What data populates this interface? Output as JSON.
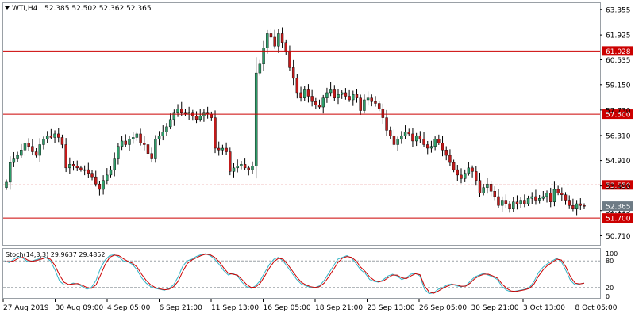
{
  "header": {
    "symbol_label": "WTI,H4",
    "ohlc": "52.385 52.502 52.362 52.365"
  },
  "colors": {
    "bull": "#2e9e6a",
    "bear": "#c21a1a",
    "level_line": "#cc0000",
    "stoch_main": "#35b5c7",
    "stoch_signal": "#cc0000",
    "price_badge": "#6e7b85",
    "grid": "#9aa0a6"
  },
  "chart_data": [
    {
      "type": "candlestick",
      "title": "WTI,H4",
      "y_ticks": [
        "63.355",
        "61.925",
        "60.535",
        "59.150",
        "57.730",
        "56.310",
        "54.910",
        "53.490",
        "52.115",
        "50.710"
      ],
      "ylim": [
        50.2,
        63.7
      ],
      "x_ticks": [
        "27 Aug 2019",
        "30 Aug 09:00",
        "4 Sep 05:00",
        "6 Sep 21:00",
        "11 Sep 13:00",
        "16 Sep 05:00",
        "18 Sep 21:00",
        "23 Sep 13:00",
        "26 Sep 05:00",
        "30 Sep 21:00",
        "3 Oct 13:00",
        "8 Oct 05:00"
      ],
      "horizontal_levels": [
        {
          "label": "61.028",
          "value": 61.028,
          "style": "solid"
        },
        {
          "label": "57.500",
          "value": 57.5,
          "style": "solid"
        },
        {
          "label": "53.550",
          "value": 53.55,
          "style": "dashed"
        },
        {
          "label": "51.700",
          "value": 51.7,
          "style": "solid"
        }
      ],
      "current_price": {
        "label": "52.365",
        "value": 52.365
      },
      "closes": [
        53.7,
        54.8,
        55.0,
        55.2,
        55.5,
        55.9,
        55.7,
        55.4,
        55.2,
        55.8,
        56.1,
        56.3,
        56.2,
        56.4,
        56.2,
        55.8,
        54.5,
        54.7,
        54.6,
        54.5,
        54.4,
        54.4,
        54.2,
        54.0,
        53.6,
        53.3,
        53.8,
        54.1,
        54.4,
        55.0,
        55.7,
        56.0,
        55.8,
        56.1,
        56.2,
        56.4,
        55.9,
        55.8,
        55.3,
        55.0,
        56.1,
        56.3,
        56.5,
        56.8,
        57.2,
        57.6,
        57.8,
        57.6,
        57.5,
        57.6,
        57.4,
        57.2,
        57.4,
        57.6,
        57.5,
        57.3,
        55.6,
        55.5,
        55.6,
        55.4,
        54.3,
        54.5,
        54.6,
        54.7,
        54.5,
        54.4,
        54.6,
        59.8,
        60.3,
        61.2,
        62.0,
        61.8,
        61.3,
        62.0,
        61.5,
        61.0,
        60.1,
        59.5,
        58.7,
        58.4,
        58.9,
        58.5,
        58.2,
        58.0,
        57.9,
        58.4,
        58.7,
        58.9,
        58.4,
        58.6,
        58.7,
        58.5,
        58.3,
        58.6,
        58.4,
        57.7,
        58.3,
        58.4,
        58.2,
        58.1,
        57.8,
        57.3,
        56.6,
        56.3,
        55.8,
        56.1,
        56.3,
        56.5,
        56.4,
        56.0,
        56.3,
        56.1,
        55.8,
        55.6,
        55.7,
        56.1,
        55.9,
        55.5,
        55.2,
        54.8,
        54.4,
        54.1,
        53.9,
        54.2,
        54.5,
        54.3,
        53.8,
        53.1,
        53.4,
        53.6,
        53.2,
        52.9,
        52.4,
        52.7,
        52.5,
        52.2,
        52.6,
        52.5,
        52.7,
        52.5,
        52.8,
        52.9,
        52.7,
        52.8,
        52.9,
        53.1,
        52.6,
        53.3,
        53.1,
        53.0,
        52.7,
        52.4,
        52.2,
        52.5,
        52.4,
        52.365
      ],
      "oscillator": {
        "label": "Stoch(14,3,3) 29.9637 29.4852",
        "ylim": [
          0,
          100
        ],
        "y_ticks": [
          "100",
          "80",
          "20",
          "0"
        ],
        "levels": [
          80,
          20
        ],
        "main": [
          80,
          76,
          84,
          90,
          86,
          78,
          80,
          83,
          86,
          88,
          80,
          60,
          35,
          26,
          26,
          30,
          28,
          22,
          16,
          20,
          36,
          64,
          82,
          92,
          94,
          89,
          80,
          78,
          72,
          60,
          42,
          30,
          22,
          18,
          16,
          14,
          18,
          26,
          44,
          68,
          80,
          84,
          90,
          94,
          96,
          92,
          84,
          72,
          58,
          48,
          52,
          46,
          32,
          22,
          18,
          24,
          36,
          54,
          72,
          84,
          88,
          80,
          66,
          52,
          38,
          28,
          24,
          20,
          20,
          24,
          36,
          52,
          68,
          84,
          88,
          92,
          86,
          74,
          60,
          52,
          38,
          34,
          32,
          38,
          46,
          50,
          46,
          38,
          42,
          50,
          52,
          46,
          16,
          6,
          8,
          16,
          20,
          26,
          28,
          24,
          22,
          24,
          34,
          44,
          48,
          52,
          48,
          44,
          38,
          22,
          14,
          10,
          12,
          14,
          16,
          20,
          34,
          54,
          66,
          74,
          80,
          86,
          78,
          58,
          36,
          26,
          28,
          30
        ],
        "signal": [
          78,
          78,
          80,
          86,
          88,
          82,
          79,
          81,
          84,
          87,
          84,
          70,
          48,
          32,
          27,
          28,
          29,
          25,
          20,
          18,
          26,
          48,
          72,
          88,
          93,
          92,
          85,
          79,
          75,
          66,
          50,
          36,
          26,
          20,
          17,
          15,
          16,
          22,
          34,
          56,
          74,
          82,
          87,
          92,
          95,
          94,
          88,
          78,
          64,
          52,
          50,
          48,
          38,
          27,
          20,
          21,
          30,
          46,
          64,
          78,
          86,
          84,
          72,
          58,
          44,
          32,
          26,
          22,
          20,
          22,
          30,
          44,
          60,
          76,
          86,
          90,
          88,
          80,
          66,
          56,
          44,
          36,
          33,
          35,
          42,
          48,
          48,
          42,
          40,
          46,
          51,
          49,
          24,
          10,
          7,
          12,
          18,
          23,
          27,
          26,
          23,
          23,
          30,
          40,
          46,
          50,
          50,
          46,
          41,
          28,
          18,
          12,
          11,
          13,
          15,
          18,
          28,
          46,
          60,
          70,
          77,
          84,
          82,
          66,
          44,
          30,
          28,
          30
        ]
      }
    }
  ]
}
